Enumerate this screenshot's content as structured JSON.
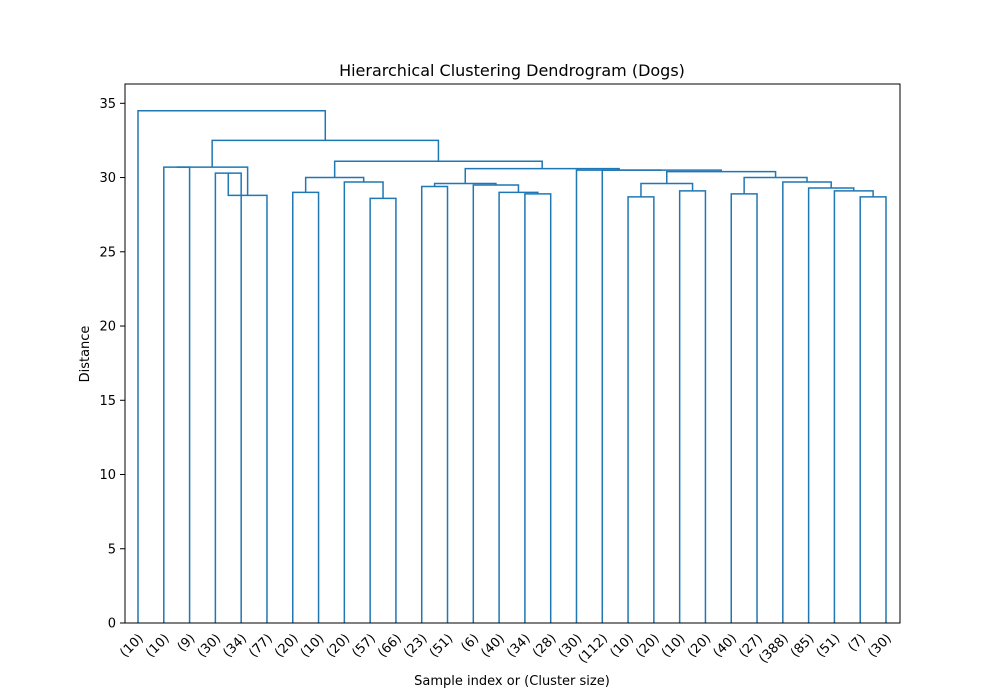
{
  "chart_data": {
    "type": "dendrogram",
    "title": "Hierarchical Clustering Dendrogram (Dogs)",
    "xlabel": "Sample index or (Cluster size)",
    "ylabel": "Distance",
    "ylim": [
      0,
      36.3
    ],
    "yticks": [
      0,
      5,
      10,
      15,
      20,
      25,
      30,
      35
    ],
    "grid": false,
    "color": "#1f77b4",
    "leaves": [
      "(10)",
      "(10)",
      "(9)",
      "(30)",
      "(34)",
      "(77)",
      "(20)",
      "(10)",
      "(20)",
      "(57)",
      "(66)",
      "(23)",
      "(51)",
      "(6)",
      "(40)",
      "(34)",
      "(28)",
      "(30)",
      "(112)",
      "(10)",
      "(20)",
      "(10)",
      "(20)",
      "(40)",
      "(27)",
      "(388)",
      "(85)",
      "(51)",
      "(7)",
      "(30)"
    ],
    "merges": [
      {
        "id": "m1",
        "left": 3,
        "right": 4,
        "height": 30.3
      },
      {
        "id": "m2",
        "left": 1,
        "right": 2,
        "height": 30.7
      },
      {
        "id": "m3",
        "left": 6,
        "right": 7,
        "height": 29.0
      },
      {
        "id": "m4",
        "left": 9,
        "right": 10,
        "height": 28.6
      },
      {
        "id": "m5",
        "left": 8,
        "right": "m4",
        "height": 29.7
      },
      {
        "id": "m6",
        "left": "m3",
        "right": "m5",
        "height": 30.0
      },
      {
        "id": "m7",
        "left": 11,
        "right": 12,
        "height": 29.4
      },
      {
        "id": "m8",
        "left": 15,
        "right": 16,
        "height": 28.9
      },
      {
        "id": "m9",
        "left": 14,
        "right": "m8",
        "height": 29.0
      },
      {
        "id": "m10",
        "left": 13,
        "right": "m9",
        "height": 29.5
      },
      {
        "id": "m11",
        "left": "m7",
        "right": "m10",
        "height": 29.6
      },
      {
        "id": "m12",
        "left": 19,
        "right": 20,
        "height": 28.7
      },
      {
        "id": "m13",
        "left": 21,
        "right": 22,
        "height": 29.1
      },
      {
        "id": "m14",
        "left": "m12",
        "right": "m13",
        "height": 29.6
      },
      {
        "id": "m15",
        "left": 28,
        "right": 29,
        "height": 28.7
      },
      {
        "id": "m16",
        "left": 27,
        "right": "m15",
        "height": 29.1
      },
      {
        "id": "m17",
        "left": 26,
        "right": "m16",
        "height": 29.3
      },
      {
        "id": "m18",
        "left": 25,
        "right": "m17",
        "height": 29.7
      },
      {
        "id": "m19",
        "left": 24,
        "right": 23,
        "height": 28.9
      },
      {
        "id": "m20",
        "left": "m19",
        "right": "m18",
        "height": 30.0
      },
      {
        "id": "m21",
        "left": "m14",
        "right": "m20",
        "height": 30.4
      },
      {
        "id": "m22",
        "left": 18,
        "right": "m21",
        "height": 30.5
      },
      {
        "id": "m23",
        "left": 17,
        "right": "m22",
        "height": 30.5
      },
      {
        "id": "m24",
        "left": "m11",
        "right": "m23",
        "height": 30.6
      },
      {
        "id": "m25",
        "left": "m6",
        "right": "m24",
        "height": 31.1
      },
      {
        "id": "m26",
        "left": "m1",
        "right": 5,
        "height": 28.8
      },
      {
        "id": "m27",
        "left": "m2",
        "right": "m26",
        "height": 30.7
      },
      {
        "id": "m28",
        "left": "m27",
        "right": "m25",
        "height": 32.5
      },
      {
        "id": "m29",
        "left": 0,
        "right": "m28",
        "height": 34.5
      }
    ]
  }
}
